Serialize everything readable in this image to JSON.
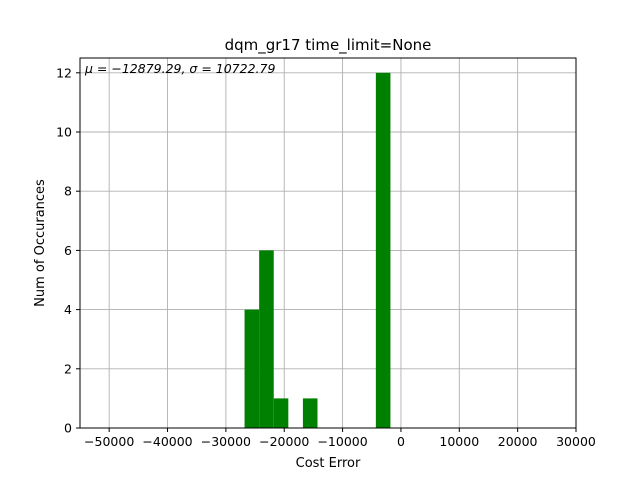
{
  "chart_data": {
    "type": "bar",
    "title": "dqm_gr17 time_limit=None",
    "xlabel": "Cost Error",
    "ylabel": "Num of Occurances",
    "annotation": "μ = −12879.29,  σ = 10722.79",
    "xlim": [
      -55000,
      30000
    ],
    "ylim": [
      0,
      12.5
    ],
    "grid": true,
    "color": "#008000",
    "bin_width": 2500,
    "x_ticks": [
      -50000,
      -40000,
      -30000,
      -20000,
      -10000,
      0,
      10000,
      20000,
      30000
    ],
    "x_tick_labels": [
      "−50000",
      "−40000",
      "−30000",
      "−20000",
      "−10000",
      "0",
      "10000",
      "20000",
      "30000"
    ],
    "y_ticks": [
      0,
      2,
      4,
      6,
      8,
      10,
      12
    ],
    "y_tick_labels": [
      "0",
      "2",
      "4",
      "6",
      "8",
      "10",
      "12"
    ],
    "bins": [
      {
        "x": -26800,
        "count": 4
      },
      {
        "x": -24300,
        "count": 6
      },
      {
        "x": -21800,
        "count": 1
      },
      {
        "x": -16800,
        "count": 1
      },
      {
        "x": -4300,
        "count": 12
      }
    ]
  }
}
